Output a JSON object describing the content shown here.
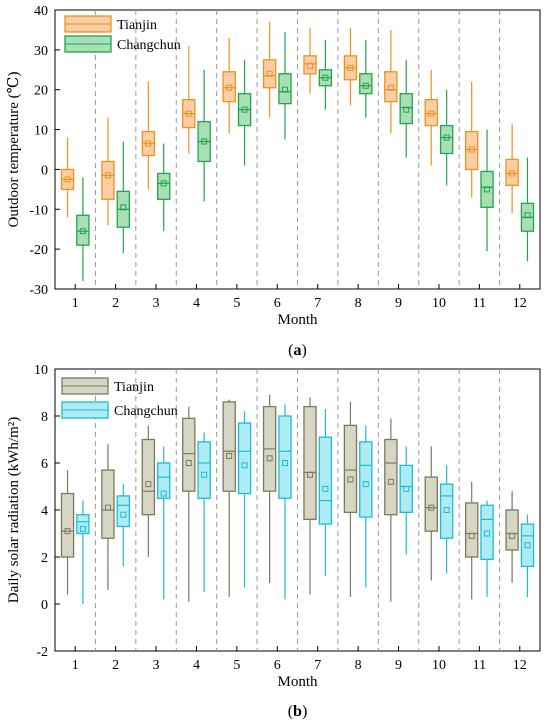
{
  "chart_data": [
    {
      "type": "box",
      "panel_label": "a",
      "xlabel": "Month",
      "ylabel": "Outdoor temperature (℃)",
      "categories": [
        "1",
        "2",
        "3",
        "4",
        "5",
        "6",
        "7",
        "8",
        "9",
        "10",
        "11",
        "12"
      ],
      "ylim": [
        -30,
        40
      ],
      "yticks": [
        "-30",
        "-20",
        "-10",
        "0",
        "10",
        "20",
        "30",
        "40"
      ],
      "legend_position": "top-left",
      "separator_lines": "dashed grey between months",
      "series": [
        {
          "name": "Tianjin",
          "stroke": "#F0901E",
          "fill": "#FBCFA6",
          "min": [
            -12,
            -14,
            -5,
            4,
            9,
            13,
            19,
            16,
            9,
            1,
            -7,
            -11
          ],
          "q1": [
            -5,
            -7.5,
            3.5,
            10.5,
            17,
            20.5,
            24,
            22.5,
            17,
            11,
            0,
            -4
          ],
          "median": [
            -2.5,
            -1.5,
            6.5,
            14,
            20.5,
            23.5,
            26.5,
            25.5,
            20,
            14,
            5,
            -1
          ],
          "q3": [
            0,
            2,
            9.5,
            17.5,
            24.5,
            27.5,
            28.5,
            28.5,
            24.5,
            17.5,
            9.5,
            2.5
          ],
          "max": [
            8,
            13,
            22,
            31,
            33,
            37,
            35.5,
            35.5,
            35,
            25,
            22,
            11.5
          ],
          "mean": [
            -2.5,
            -1.5,
            6.5,
            14,
            20.5,
            24,
            26,
            25.5,
            20.5,
            14,
            5,
            -1
          ]
        },
        {
          "name": "Changchun",
          "stroke": "#23A44A",
          "fill": "#A8DFB5",
          "min": [
            -28,
            -21,
            -15.5,
            -8,
            1,
            7.5,
            15,
            13,
            3,
            -4,
            -20.5,
            -23
          ],
          "q1": [
            -19,
            -14.5,
            -7.5,
            2,
            11,
            16.5,
            21,
            19,
            11.5,
            4,
            -9.5,
            -15.5
          ],
          "median": [
            -15.5,
            -10,
            -3.5,
            7,
            15,
            19.5,
            23,
            21,
            15.5,
            8,
            -4.5,
            -12
          ],
          "q3": [
            -11.5,
            -5.5,
            -1,
            12,
            19,
            24,
            25,
            24,
            19,
            11,
            -0.5,
            -8.5
          ],
          "max": [
            -2,
            7,
            6.5,
            25,
            27.5,
            34.5,
            32.5,
            32.5,
            27.5,
            20,
            10,
            3
          ],
          "mean": [
            -15.5,
            -9.5,
            -3.5,
            7,
            15,
            20,
            23,
            21,
            15,
            8,
            -5,
            -11.5
          ]
        }
      ]
    },
    {
      "type": "box",
      "panel_label": "b",
      "xlabel": "Month",
      "ylabel": "Daily solar radiation (kWh/m²)",
      "categories": [
        "1",
        "2",
        "3",
        "4",
        "5",
        "6",
        "7",
        "8",
        "9",
        "10",
        "11",
        "12"
      ],
      "ylim": [
        -2,
        10
      ],
      "yticks": [
        "-2",
        "0",
        "2",
        "4",
        "6",
        "8",
        "10"
      ],
      "legend_position": "top-left",
      "separator_lines": "dashed grey between months",
      "series": [
        {
          "name": "Tianjin",
          "stroke": "#7A7A5E",
          "fill": "#D7D6C4",
          "min": [
            0.4,
            0.6,
            2,
            0.1,
            0.3,
            0.9,
            0.4,
            0.3,
            0.1,
            1,
            0.2,
            0.9
          ],
          "q1": [
            2,
            2.8,
            3.8,
            4.8,
            4.8,
            4.8,
            3.6,
            3.9,
            3.8,
            3.1,
            2,
            2.3
          ],
          "median": [
            3.1,
            4,
            4.8,
            6.4,
            6.5,
            6.6,
            5.6,
            5.7,
            6,
            4.1,
            3,
            3
          ],
          "q3": [
            4.7,
            5.7,
            7,
            7.9,
            8.6,
            8.4,
            8.4,
            7.6,
            7,
            5.4,
            4.3,
            4
          ],
          "max": [
            5.7,
            6.8,
            7.6,
            8.4,
            8.7,
            8.9,
            8.8,
            8.6,
            7.9,
            6.7,
            5.2,
            4.8
          ],
          "mean": [
            3.1,
            4.1,
            5.1,
            6,
            6.3,
            6.2,
            5.5,
            5.3,
            5.2,
            4.1,
            2.9,
            2.9
          ]
        },
        {
          "name": "Changchun",
          "stroke": "#1BBDD6",
          "fill": "#AEEBF3",
          "min": [
            0,
            1.6,
            0.2,
            0.5,
            0.7,
            0.2,
            1.2,
            0.7,
            2.1,
            1.3,
            0.3,
            0.3
          ],
          "q1": [
            3,
            3.3,
            4.5,
            4.5,
            4.7,
            4.5,
            3.4,
            3.7,
            3.9,
            2.8,
            1.9,
            1.6
          ],
          "median": [
            3.5,
            4.2,
            5.4,
            6,
            6.5,
            6.5,
            4.4,
            5.9,
            5,
            4.6,
            3.6,
            2.9
          ],
          "q3": [
            3.8,
            4.6,
            6,
            6.9,
            7.7,
            8,
            7.1,
            6.9,
            5.9,
            5.1,
            4.2,
            3.4
          ],
          "max": [
            4.4,
            5.1,
            6.7,
            7.3,
            8.2,
            8.5,
            8.3,
            7.6,
            6.7,
            5.9,
            4.4,
            3.8
          ],
          "mean": [
            3.2,
            3.8,
            4.7,
            5.5,
            5.9,
            6,
            4.9,
            5.1,
            4.9,
            4,
            3,
            2.5
          ]
        }
      ]
    }
  ]
}
